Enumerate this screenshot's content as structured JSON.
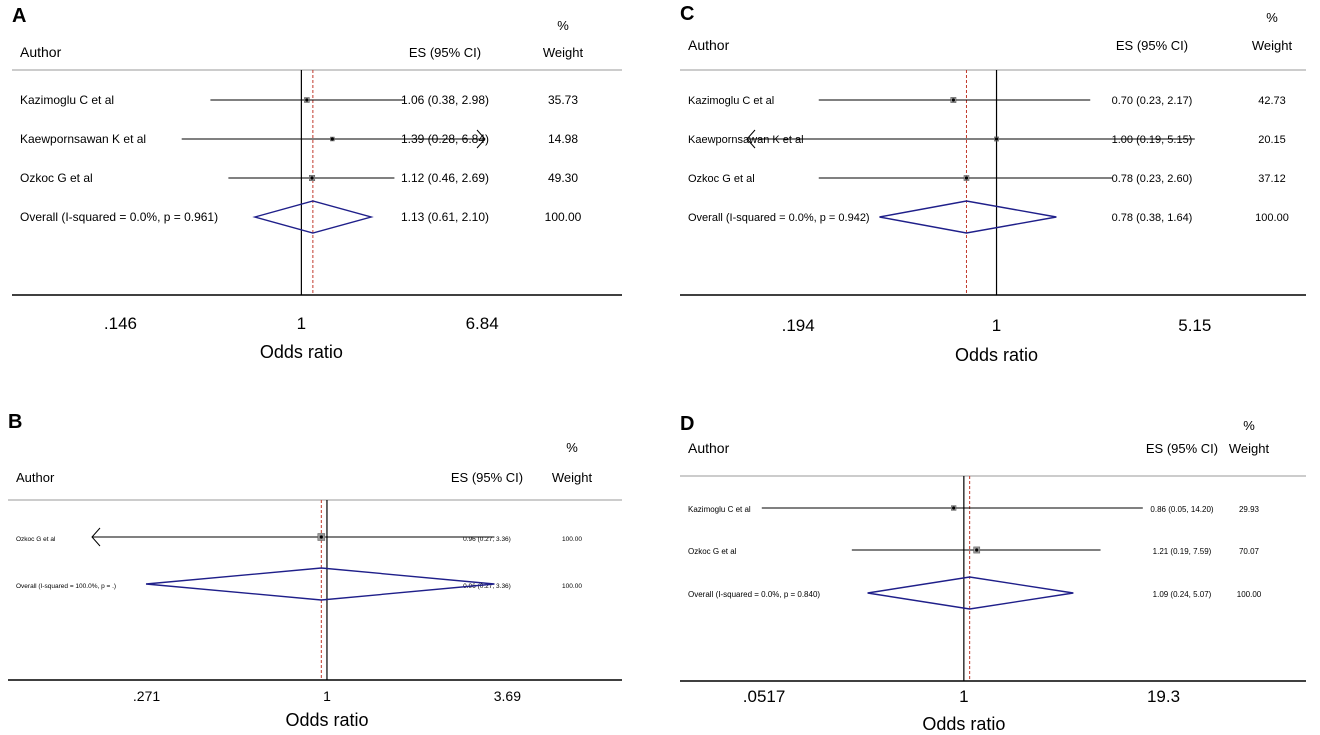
{
  "colors": {
    "diamond": "#1f1f8a",
    "refline_pooled": "#c0392b",
    "line": "#000000",
    "axis": "#000000",
    "separator": "#9a9a9a"
  },
  "chart_data": [
    {
      "panel": "A",
      "type": "forest",
      "scale": "log",
      "headers": {
        "author": "Author",
        "es": "ES (95% CI)",
        "pct": "%",
        "weight": "Weight"
      },
      "xlabel": "Odds ratio",
      "xticks": [
        ".146",
        "1",
        "6.84"
      ],
      "xlim": [
        0.09,
        12
      ],
      "null_line": 1,
      "pooled_line": 1.13,
      "rows": [
        {
          "label": "Kazimoglu C et al",
          "es": 1.06,
          "lo": 0.38,
          "hi": 2.98,
          "es_text": "1.06 (0.38, 2.98)",
          "weight": "35.73"
        },
        {
          "label": "Kaewpornsawan K et al",
          "es": 1.39,
          "lo": 0.28,
          "hi": 6.84,
          "es_text": "1.39 (0.28, 6.84)",
          "weight": "14.98",
          "arrow_right": true
        },
        {
          "label": "Ozkoc G et al",
          "es": 1.12,
          "lo": 0.46,
          "hi": 2.69,
          "es_text": "1.12 (0.46, 2.69)",
          "weight": "49.30"
        },
        {
          "label": "Overall  (I-squared = 0.0%, p = 0.961)",
          "es": 1.13,
          "lo": 0.61,
          "hi": 2.1,
          "es_text": "1.13 (0.61, 2.10)",
          "weight": "100.00",
          "overall": true
        }
      ]
    },
    {
      "panel": "B",
      "type": "forest",
      "scale": "log",
      "headers": {
        "author": "Author",
        "es": "ES (95% CI)",
        "pct": "%",
        "weight": "Weight"
      },
      "xlabel": "Odds ratio",
      "xticks": [
        ".271",
        "1",
        "3.69"
      ],
      "xlim": [
        0.18,
        5.4
      ],
      "null_line": 1,
      "pooled_line": 0.96,
      "rows": [
        {
          "label": "Ozkoc G et al",
          "es": 0.96,
          "lo": 0.27,
          "hi": 3.36,
          "es_text": "0.96 (0.27, 3.36)",
          "weight": "100.00",
          "arrow_left": true
        },
        {
          "label": "Overall  (I-squared = 100.0%, p = .)",
          "es": 0.96,
          "lo": 0.27,
          "hi": 3.36,
          "es_text": "0.96 (0.27, 3.36)",
          "weight": "100.00",
          "overall": true
        }
      ]
    },
    {
      "panel": "C",
      "type": "forest",
      "scale": "log",
      "headers": {
        "author": "Author",
        "es": "ES (95% CI)",
        "pct": "%",
        "weight": "Weight"
      },
      "xlabel": "Odds ratio",
      "xticks": [
        ".194",
        "1",
        "5.15"
      ],
      "xlim": [
        0.125,
        7.8
      ],
      "null_line": 1,
      "pooled_line": 0.78,
      "rows": [
        {
          "label": "Kazimoglu C et al",
          "es": 0.7,
          "lo": 0.23,
          "hi": 2.17,
          "es_text": "0.70 (0.23, 2.17)",
          "weight": "42.73"
        },
        {
          "label": "Kaewpornsawan K et al",
          "es": 1.0,
          "lo": 0.19,
          "hi": 5.15,
          "es_text": "1.00 (0.19, 5.15)",
          "weight": "20.15",
          "arrow_left": true
        },
        {
          "label": "Ozkoc G et al",
          "es": 0.78,
          "lo": 0.23,
          "hi": 2.6,
          "es_text": "0.78 (0.23, 2.60)",
          "weight": "37.12"
        },
        {
          "label": "Overall  (I-squared = 0.0%, p = 0.942)",
          "es": 0.78,
          "lo": 0.38,
          "hi": 1.64,
          "es_text": "0.78 (0.38, 1.64)",
          "weight": "100.00",
          "overall": true
        }
      ]
    },
    {
      "panel": "D",
      "type": "forest",
      "scale": "log",
      "headers": {
        "author": "Author",
        "es": "ES (95% CI)",
        "pct": "%",
        "weight": "Weight"
      },
      "xlabel": "Odds ratio",
      "xticks": [
        ".0517",
        "1",
        "19.3"
      ],
      "xlim": [
        0.02,
        60
      ],
      "null_line": 1,
      "pooled_line": 1.09,
      "rows": [
        {
          "label": "Kazimoglu C et al",
          "es": 0.86,
          "lo": 0.05,
          "hi": 14.2,
          "es_text": "0.86 (0.05, 14.20)",
          "weight": "29.93"
        },
        {
          "label": "Ozkoc G et al",
          "es": 1.21,
          "lo": 0.19,
          "hi": 7.59,
          "es_text": "1.21 (0.19, 7.59)",
          "weight": "70.07"
        },
        {
          "label": "Overall  (I-squared = 0.0%, p = 0.840)",
          "es": 1.09,
          "lo": 0.24,
          "hi": 5.07,
          "es_text": "1.09 (0.24, 5.07)",
          "weight": "100.00",
          "overall": true
        }
      ]
    }
  ]
}
